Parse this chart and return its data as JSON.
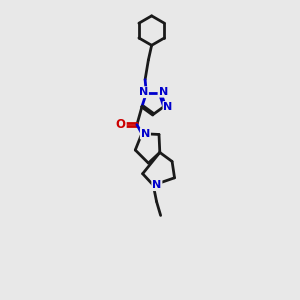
{
  "bg_color": "#e8e8e8",
  "bond_color": "#1a1a1a",
  "N_color": "#0000cc",
  "O_color": "#cc0000",
  "line_width": 2.0,
  "figsize": [
    3.0,
    3.0
  ],
  "dpi": 100,
  "xlim": [
    0,
    10
  ],
  "ylim": [
    0,
    18
  ]
}
